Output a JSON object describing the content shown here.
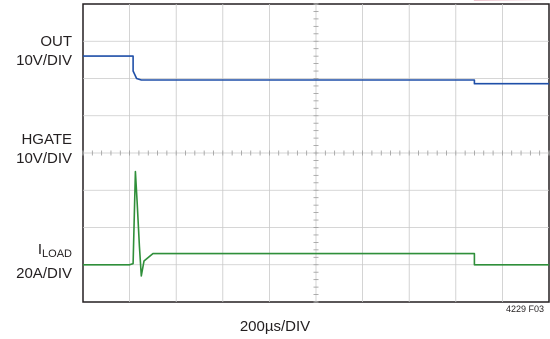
{
  "chart_data": {
    "type": "line",
    "xlabel": "200µs/DIV",
    "figure_number": "4229 F03",
    "x_divisions": 10,
    "y_divisions": 8,
    "x_range_us": [
      0,
      2000
    ],
    "grid": true,
    "channels": [
      {
        "id": "out",
        "label": "OUT",
        "scale": "10V/DIV",
        "color": "#b0103a",
        "unit": "V",
        "points": [
          [
            0,
            20
          ],
          [
            215,
            20
          ],
          [
            215,
            14
          ],
          [
            235,
            14
          ],
          [
            1000,
            13.7
          ],
          [
            1680,
            13.5
          ],
          [
            1680,
            13.2
          ],
          [
            2000,
            13.3
          ]
        ]
      },
      {
        "id": "hgate",
        "label": "HGATE",
        "scale": "10V/DIV",
        "color": "#1f4fa8",
        "unit": "V",
        "points": [
          [
            0,
            20
          ],
          [
            215,
            20
          ],
          [
            215,
            16
          ],
          [
            230,
            14
          ],
          [
            250,
            13.6
          ],
          [
            1000,
            13.6
          ],
          [
            1680,
            13.6
          ],
          [
            1680,
            12.6
          ],
          [
            2000,
            12.6
          ]
        ]
      },
      {
        "id": "iload",
        "label_main": "I",
        "label_sub": "LOAD",
        "scale": "20A/DIV",
        "color": "#2f8f3a",
        "unit": "A",
        "points": [
          [
            0,
            0
          ],
          [
            200,
            0
          ],
          [
            215,
            0.6
          ],
          [
            225,
            50
          ],
          [
            232,
            34
          ],
          [
            242,
            10
          ],
          [
            250,
            -6
          ],
          [
            262,
            2
          ],
          [
            300,
            6
          ],
          [
            1000,
            6
          ],
          [
            1680,
            6
          ],
          [
            1680,
            0
          ],
          [
            2000,
            0
          ]
        ]
      }
    ]
  }
}
